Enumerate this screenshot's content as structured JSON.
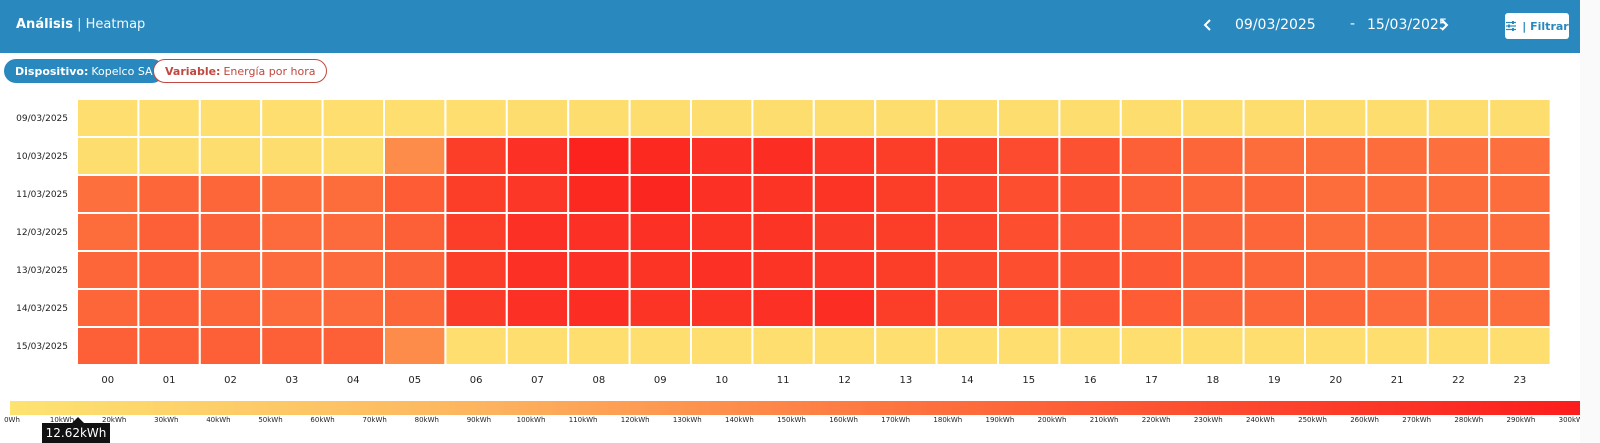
{
  "header": {
    "title_bold": "Análisis",
    "title_sep": " | ",
    "title_sub": "Heatmap",
    "date_from": "09/03/2025",
    "date_sep": "-",
    "date_to": "15/03/2025",
    "filter_label": "| Filtrar",
    "accent": "#2988bd"
  },
  "filters": {
    "device_label": "Dispositivo:",
    "device_value": "Kopelco SA",
    "variable_label": "Variable:",
    "variable_value": "Energía por hora"
  },
  "chart_data": {
    "type": "heatmap",
    "x": [
      "00",
      "01",
      "02",
      "03",
      "04",
      "05",
      "06",
      "07",
      "08",
      "09",
      "10",
      "11",
      "12",
      "13",
      "14",
      "15",
      "16",
      "17",
      "18",
      "19",
      "20",
      "21",
      "22",
      "23"
    ],
    "y": [
      "09/03/2025",
      "10/03/2025",
      "11/03/2025",
      "12/03/2025",
      "13/03/2025",
      "14/03/2025",
      "15/03/2025"
    ],
    "unit": "kWh",
    "color_range": [
      0,
      300
    ],
    "colors": [
      "#fde371",
      "#fc1c1c"
    ],
    "values": [
      [
        10,
        10,
        10,
        10,
        10,
        10,
        10,
        12,
        12,
        12,
        12,
        12,
        12,
        12,
        12,
        12,
        12,
        12,
        12,
        12,
        12,
        12,
        12,
        12
      ],
      [
        12,
        12,
        12,
        12,
        12,
        140,
        250,
        270,
        290,
        280,
        270,
        275,
        260,
        250,
        245,
        230,
        220,
        200,
        190,
        180,
        180,
        180,
        175,
        175
      ],
      [
        175,
        190,
        190,
        180,
        180,
        205,
        250,
        260,
        280,
        285,
        270,
        265,
        265,
        250,
        240,
        225,
        220,
        200,
        190,
        190,
        180,
        180,
        180,
        180
      ],
      [
        180,
        200,
        195,
        185,
        185,
        200,
        250,
        270,
        270,
        270,
        265,
        265,
        255,
        250,
        240,
        225,
        215,
        200,
        195,
        190,
        180,
        180,
        180,
        180
      ],
      [
        190,
        200,
        185,
        185,
        185,
        195,
        250,
        270,
        270,
        265,
        270,
        265,
        260,
        250,
        235,
        225,
        220,
        210,
        200,
        190,
        185,
        180,
        180,
        180
      ],
      [
        190,
        200,
        190,
        185,
        185,
        190,
        255,
        270,
        275,
        265,
        265,
        270,
        275,
        250,
        235,
        225,
        215,
        205,
        195,
        190,
        190,
        185,
        180,
        180
      ],
      [
        200,
        200,
        200,
        200,
        200,
        140,
        10,
        10,
        10,
        10,
        10,
        10,
        10,
        10,
        10,
        10,
        10,
        10,
        10,
        10,
        10,
        10,
        10,
        10
      ]
    ]
  },
  "legend": {
    "ticks": [
      "0Wh",
      "10kWh",
      "20kWh",
      "30kWh",
      "40kWh",
      "50kWh",
      "60kWh",
      "70kWh",
      "80kWh",
      "90kWh",
      "100kWh",
      "110kWh",
      "120kWh",
      "130kWh",
      "140kWh",
      "150kWh",
      "160kWh",
      "170kWh",
      "180kWh",
      "190kWh",
      "200kWh",
      "210kWh",
      "220kWh",
      "230kWh",
      "240kWh",
      "250kWh",
      "260kWh",
      "270kWh",
      "280kWh",
      "290kWh",
      "300kWh"
    ],
    "tooltip": "12.62kWh"
  }
}
